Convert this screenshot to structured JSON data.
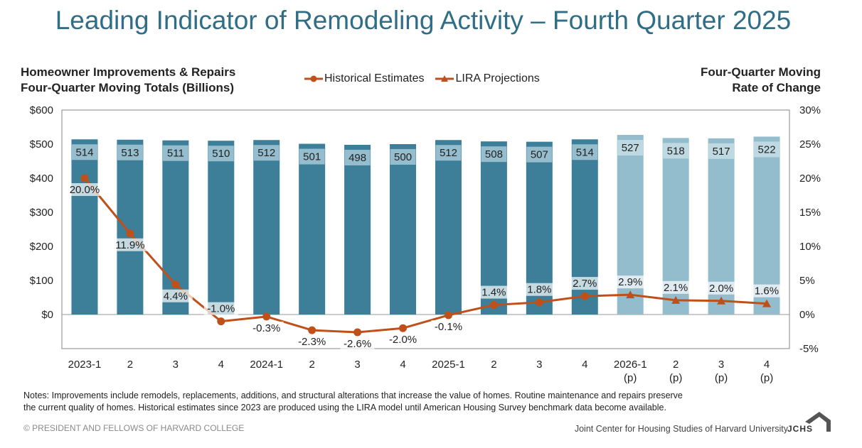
{
  "header": {
    "title": "Leading Indicator of Remodeling Activity – Fourth Quarter 2025"
  },
  "axes": {
    "left_title_line1": "Homeowner Improvements & Repairs",
    "left_title_line2": "Four-Quarter Moving Totals (Billions)",
    "right_title_line1": "Four-Quarter Moving",
    "right_title_line2": "Rate of Change"
  },
  "legend": {
    "historical_label": "Historical Estimates",
    "projection_label": "LIRA Projections"
  },
  "colors": {
    "bar_historical": "#3d7f99",
    "bar_projection": "#93bccd",
    "line": "#c0501a",
    "title": "#2f6e86"
  },
  "chart_data": {
    "type": "bar",
    "categories": [
      [
        "2023-1"
      ],
      [
        "2"
      ],
      [
        "3"
      ],
      [
        "4"
      ],
      [
        "2024-1"
      ],
      [
        "2"
      ],
      [
        "3"
      ],
      [
        "4"
      ],
      [
        "2025-1"
      ],
      [
        "2"
      ],
      [
        "3"
      ],
      [
        "4"
      ],
      [
        "2026-1",
        "(p)"
      ],
      [
        "2",
        "(p)"
      ],
      [
        "3",
        "(p)"
      ],
      [
        "4",
        "(p)"
      ]
    ],
    "series": [
      {
        "name": "Historical Estimates",
        "type": "bar",
        "axis": "left",
        "values": [
          514,
          513,
          511,
          510,
          512,
          501,
          498,
          500,
          512,
          508,
          507,
          514,
          null,
          null,
          null,
          null
        ]
      },
      {
        "name": "LIRA Projections",
        "type": "bar",
        "axis": "left",
        "values": [
          null,
          null,
          null,
          null,
          null,
          null,
          null,
          null,
          null,
          null,
          null,
          null,
          527,
          518,
          517,
          522
        ]
      },
      {
        "name": "Historical Estimates",
        "type": "line",
        "marker": "circle",
        "axis": "right",
        "values": [
          20.0,
          11.9,
          4.4,
          -1.0,
          -0.3,
          -2.3,
          -2.6,
          -2.0,
          -0.1,
          1.4,
          1.8,
          2.7,
          null,
          null,
          null,
          null
        ]
      },
      {
        "name": "LIRA Projections",
        "type": "line",
        "marker": "triangle",
        "axis": "right",
        "values": [
          null,
          null,
          null,
          null,
          null,
          null,
          null,
          null,
          null,
          null,
          null,
          2.7,
          2.9,
          2.1,
          2.0,
          1.6
        ]
      }
    ],
    "bar_labels": [
      "514",
      "513",
      "511",
      "510",
      "512",
      "501",
      "498",
      "500",
      "512",
      "508",
      "507",
      "514",
      "527",
      "518",
      "517",
      "522"
    ],
    "rate_labels": [
      "20.0%",
      "11.9%",
      "4.4%",
      "-1.0%",
      "-0.3%",
      "-2.3%",
      "-2.6%",
      "-2.0%",
      "-0.1%",
      "1.4%",
      "1.8%",
      "2.7%",
      "2.9%",
      "2.1%",
      "2.0%",
      "1.6%"
    ],
    "rate_label_position": [
      "below",
      "below",
      "below",
      "above",
      "below",
      "below",
      "below",
      "below",
      "below",
      "above",
      "above",
      "above",
      "above",
      "above",
      "above",
      "above"
    ],
    "y_left": {
      "min": -100,
      "max": 600,
      "ticks": [
        0,
        100,
        200,
        300,
        400,
        500,
        600
      ],
      "tick_labels": [
        "$0",
        "$100",
        "$200",
        "$300",
        "$400",
        "$500",
        "$600"
      ]
    },
    "y_right": {
      "min": -5,
      "max": 30,
      "ticks": [
        -5,
        0,
        5,
        10,
        15,
        20,
        25,
        30
      ],
      "tick_labels": [
        "-5%",
        "0%",
        "5%",
        "10%",
        "15%",
        "20%",
        "25%",
        "30%"
      ]
    },
    "grid": false,
    "legend_position": "top-center"
  },
  "footer": {
    "notes_line1": "Notes: Improvements include remodels, replacements, additions, and structural alterations that increase the value of homes. Routine maintenance and repairs preserve",
    "notes_line2": "the current quality of homes. Historical estimates since 2023 are produced using the LIRA model until American Housing Survey benchmark data become available.",
    "copyright": "© PRESIDENT AND FELLOWS OF HARVARD COLLEGE",
    "org": "Joint Center for Housing Studies of Harvard University",
    "logo_text": "JCHS"
  }
}
